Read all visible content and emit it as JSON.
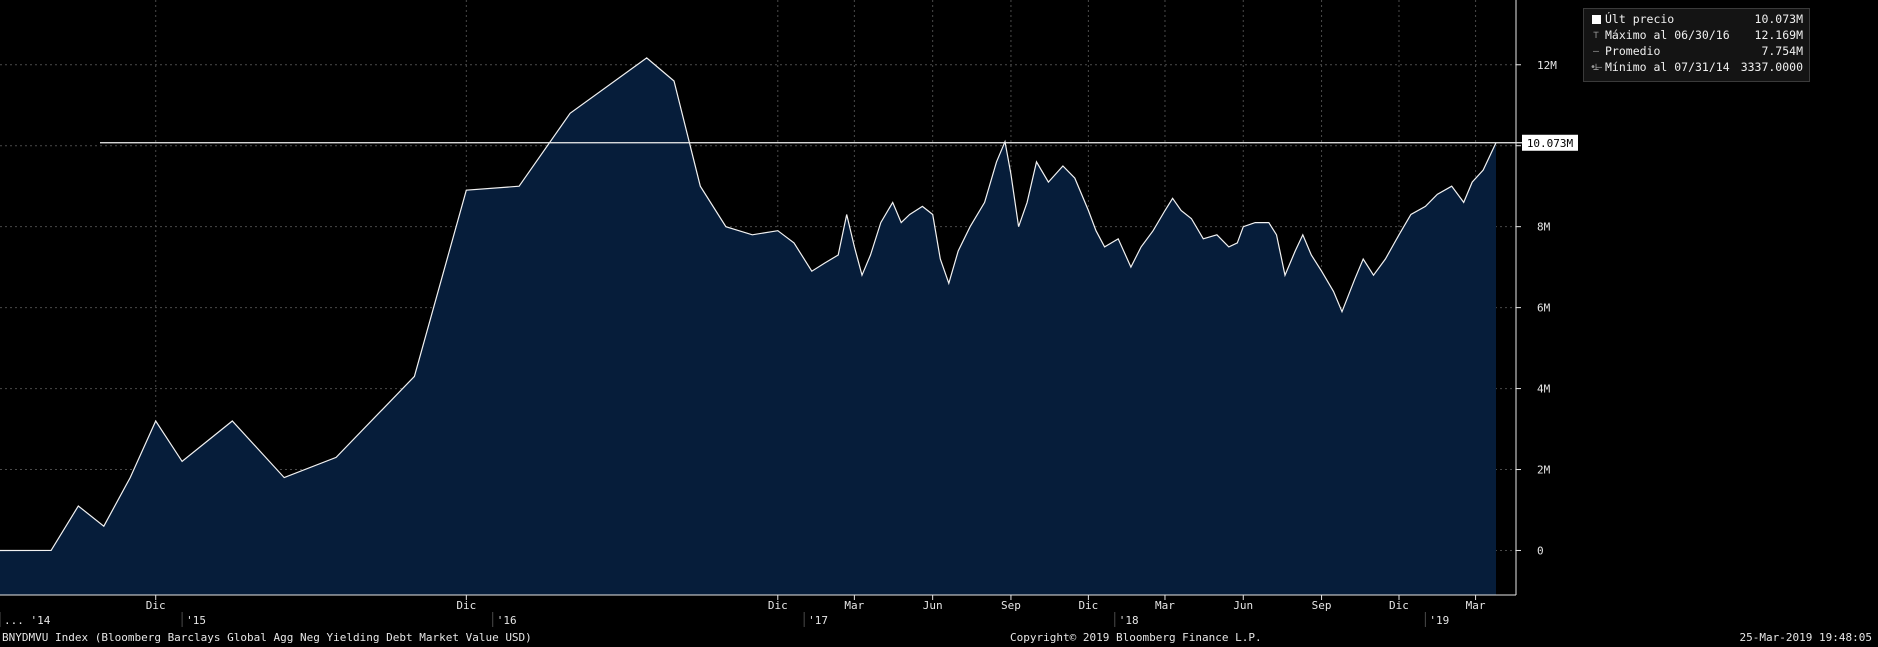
{
  "colors": {
    "background": "#000000",
    "area_fill": "#061d3a",
    "line": "#f2f2f2",
    "grid": "#4a4a4a",
    "text": "#e6e6e6"
  },
  "footer": {
    "left": "BNYDMVU Index (Bloomberg Barclays Global Agg Neg Yielding Debt Market Value USD)",
    "center": "Copyright© 2019 Bloomberg Finance L.P.",
    "right": "25-Mar-2019 19:48:05"
  },
  "legend": {
    "rows": [
      {
        "marker": "swatch",
        "label": "Últ precio",
        "value": "10.073M"
      },
      {
        "marker": "high-icon",
        "label": "Máximo al 06/30/16",
        "value": "12.169M"
      },
      {
        "marker": "avg-icon",
        "label": "Promedio",
        "value": "7.754M"
      },
      {
        "marker": "low-icon",
        "label": "Mínimo al 07/31/14",
        "value": "3337.0000"
      }
    ]
  },
  "chart_data": {
    "type": "area",
    "title": "",
    "xlabel": "",
    "ylabel": "",
    "ylim": [
      -1.1,
      13.6
    ],
    "y_ticks": [
      {
        "value": 0,
        "label": "0"
      },
      {
        "value": 2,
        "label": "2M"
      },
      {
        "value": 4,
        "label": "4M"
      },
      {
        "value": 6,
        "label": "6M"
      },
      {
        "value": 8,
        "label": "8M"
      },
      {
        "value": 10,
        "label": "10M"
      },
      {
        "value": 12,
        "label": "12M"
      }
    ],
    "x_range": [
      "2014-06-01",
      "2019-03-25"
    ],
    "month_ticks": [
      {
        "date": "2014-12-01",
        "label": "Dic"
      },
      {
        "date": "2015-12-01",
        "label": "Dic"
      },
      {
        "date": "2016-12-01",
        "label": "Dic"
      },
      {
        "date": "2017-03-01",
        "label": "Mar"
      },
      {
        "date": "2017-06-01",
        "label": "Jun"
      },
      {
        "date": "2017-09-01",
        "label": "Sep"
      },
      {
        "date": "2017-12-01",
        "label": "Dic"
      },
      {
        "date": "2018-03-01",
        "label": "Mar"
      },
      {
        "date": "2018-06-01",
        "label": "Jun"
      },
      {
        "date": "2018-09-01",
        "label": "Sep"
      },
      {
        "date": "2018-12-01",
        "label": "Dic"
      },
      {
        "date": "2019-03-01",
        "label": "Mar"
      }
    ],
    "year_ticks": [
      {
        "date": "2014-06-01",
        "label": "... '14"
      },
      {
        "date": "2015-01-01",
        "label": "'15"
      },
      {
        "date": "2016-01-01",
        "label": "'16"
      },
      {
        "date": "2017-01-01",
        "label": "'17"
      },
      {
        "date": "2018-01-01",
        "label": "'18"
      },
      {
        "date": "2019-01-01",
        "label": "'19"
      }
    ],
    "last_price": {
      "value": 10.073,
      "label": "10.073M"
    },
    "series": [
      {
        "name": "BNYDMVU Index",
        "points": [
          [
            "2014-06-01",
            0.0
          ],
          [
            "2014-07-31",
            0.003
          ],
          [
            "2014-09-01",
            1.1
          ],
          [
            "2014-10-01",
            0.6
          ],
          [
            "2014-11-01",
            1.8
          ],
          [
            "2014-12-01",
            3.2
          ],
          [
            "2015-01-01",
            2.2
          ],
          [
            "2015-03-01",
            3.2
          ],
          [
            "2015-05-01",
            1.8
          ],
          [
            "2015-07-01",
            2.3
          ],
          [
            "2015-10-01",
            4.3
          ],
          [
            "2015-12-01",
            8.9
          ],
          [
            "2016-02-01",
            9.0
          ],
          [
            "2016-04-01",
            10.8
          ],
          [
            "2016-06-30",
            12.169
          ],
          [
            "2016-08-01",
            11.6
          ],
          [
            "2016-09-01",
            9.0
          ],
          [
            "2016-10-01",
            8.0
          ],
          [
            "2016-11-01",
            7.8
          ],
          [
            "2016-12-01",
            7.9
          ],
          [
            "2016-12-20",
            7.6
          ],
          [
            "2017-01-10",
            6.9
          ],
          [
            "2017-01-25",
            7.1
          ],
          [
            "2017-02-10",
            7.3
          ],
          [
            "2017-02-20",
            8.3
          ],
          [
            "2017-03-01",
            7.5
          ],
          [
            "2017-03-10",
            6.8
          ],
          [
            "2017-03-20",
            7.3
          ],
          [
            "2017-04-01",
            8.1
          ],
          [
            "2017-04-15",
            8.6
          ],
          [
            "2017-04-25",
            8.1
          ],
          [
            "2017-05-05",
            8.3
          ],
          [
            "2017-05-20",
            8.5
          ],
          [
            "2017-06-01",
            8.3
          ],
          [
            "2017-06-10",
            7.2
          ],
          [
            "2017-06-20",
            6.6
          ],
          [
            "2017-07-01",
            7.4
          ],
          [
            "2017-07-15",
            8.0
          ],
          [
            "2017-08-01",
            8.6
          ],
          [
            "2017-08-15",
            9.6
          ],
          [
            "2017-08-25",
            10.1
          ],
          [
            "2017-09-01",
            9.3
          ],
          [
            "2017-09-10",
            8.0
          ],
          [
            "2017-09-20",
            8.6
          ],
          [
            "2017-10-01",
            9.6
          ],
          [
            "2017-10-15",
            9.1
          ],
          [
            "2017-11-01",
            9.5
          ],
          [
            "2017-11-15",
            9.2
          ],
          [
            "2017-12-01",
            8.4
          ],
          [
            "2017-12-10",
            7.9
          ],
          [
            "2017-12-20",
            7.5
          ],
          [
            "2018-01-05",
            7.7
          ],
          [
            "2018-01-20",
            7.0
          ],
          [
            "2018-02-01",
            7.5
          ],
          [
            "2018-02-15",
            7.9
          ],
          [
            "2018-03-01",
            8.4
          ],
          [
            "2018-03-10",
            8.7
          ],
          [
            "2018-03-20",
            8.4
          ],
          [
            "2018-04-01",
            8.2
          ],
          [
            "2018-04-15",
            7.7
          ],
          [
            "2018-05-01",
            7.8
          ],
          [
            "2018-05-15",
            7.5
          ],
          [
            "2018-05-25",
            7.6
          ],
          [
            "2018-06-01",
            8.0
          ],
          [
            "2018-06-15",
            8.1
          ],
          [
            "2018-07-01",
            8.1
          ],
          [
            "2018-07-10",
            7.8
          ],
          [
            "2018-07-20",
            6.8
          ],
          [
            "2018-08-01",
            7.4
          ],
          [
            "2018-08-10",
            7.8
          ],
          [
            "2018-08-20",
            7.3
          ],
          [
            "2018-09-01",
            6.9
          ],
          [
            "2018-09-15",
            6.4
          ],
          [
            "2018-09-25",
            5.9
          ],
          [
            "2018-10-10",
            6.7
          ],
          [
            "2018-10-20",
            7.2
          ],
          [
            "2018-11-01",
            6.8
          ],
          [
            "2018-11-15",
            7.2
          ],
          [
            "2018-12-01",
            7.8
          ],
          [
            "2018-12-15",
            8.3
          ],
          [
            "2019-01-01",
            8.5
          ],
          [
            "2019-01-15",
            8.8
          ],
          [
            "2019-02-01",
            9.0
          ],
          [
            "2019-02-15",
            8.6
          ],
          [
            "2019-02-25",
            9.1
          ],
          [
            "2019-03-10",
            9.4
          ],
          [
            "2019-03-25",
            10.073
          ]
        ]
      }
    ]
  }
}
